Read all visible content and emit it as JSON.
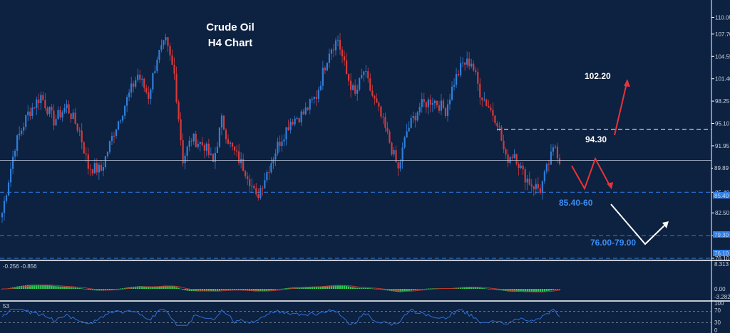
{
  "chart_data": {
    "type": "candlestick",
    "title": "Crude Oil",
    "subtitle": "H4 Chart",
    "colors": {
      "background": "#0d2140",
      "up": "#2f7fd9",
      "down": "#d73a3a",
      "macd": "#34c759",
      "signal": "#c0392b",
      "rsi": "#2f6fd6",
      "white": "#ffffff",
      "level_blue": "#2d7fe8",
      "current_price": "#b8c4d8"
    },
    "price_axis": {
      "ticks": [
        "110.05",
        "107.70",
        "104.55",
        "101.40",
        "98.25",
        "95.10",
        "91.95",
        "88.80",
        "85.40",
        "82.50",
        "79.30",
        "76.10"
      ],
      "ylim": [
        75.8,
        112.5
      ]
    },
    "current_price": "89.89",
    "levels": {
      "resistance_low": "94.30",
      "resistance_high": "102.20",
      "support_zone": "85.40-60",
      "support_deep": "76.00-79.00",
      "support_deep_tag": "79.30",
      "support_floor_tag": "76.10",
      "zone_tag": "85.40"
    },
    "macd": {
      "label": "-0.256 -0.856",
      "ticks": [
        "8.313",
        "0.00",
        "-3.282"
      ]
    },
    "rsi": {
      "label": "53",
      "ticks": [
        "100",
        "70",
        "30",
        "0"
      ]
    },
    "path_points": [
      {
        "i": 0,
        "p": 82.5
      },
      {
        "i": 6,
        "p": 92.0
      },
      {
        "i": 12,
        "p": 96.5
      },
      {
        "i": 18,
        "p": 99.0
      },
      {
        "i": 24,
        "p": 95.5
      },
      {
        "i": 30,
        "p": 97.5
      },
      {
        "i": 36,
        "p": 94.0
      },
      {
        "i": 40,
        "p": 89.0
      },
      {
        "i": 46,
        "p": 88.5
      },
      {
        "i": 52,
        "p": 94.0
      },
      {
        "i": 58,
        "p": 98.5
      },
      {
        "i": 63,
        "p": 102.0
      },
      {
        "i": 68,
        "p": 99.0
      },
      {
        "i": 72,
        "p": 104.5
      },
      {
        "i": 76,
        "p": 106.5
      },
      {
        "i": 80,
        "p": 102.0
      },
      {
        "i": 84,
        "p": 90.0
      },
      {
        "i": 88,
        "p": 93.0
      },
      {
        "i": 94,
        "p": 92.0
      },
      {
        "i": 98,
        "p": 89.5
      },
      {
        "i": 102,
        "p": 95.5
      },
      {
        "i": 106,
        "p": 92.0
      },
      {
        "i": 110,
        "p": 90.0
      },
      {
        "i": 114,
        "p": 88.0
      },
      {
        "i": 118,
        "p": 84.5
      },
      {
        "i": 122,
        "p": 87.5
      },
      {
        "i": 128,
        "p": 92.0
      },
      {
        "i": 134,
        "p": 95.5
      },
      {
        "i": 140,
        "p": 96.5
      },
      {
        "i": 146,
        "p": 99.0
      },
      {
        "i": 152,
        "p": 105.5
      },
      {
        "i": 156,
        "p": 107.0
      },
      {
        "i": 160,
        "p": 102.0
      },
      {
        "i": 164,
        "p": 99.0
      },
      {
        "i": 168,
        "p": 102.5
      },
      {
        "i": 172,
        "p": 99.0
      },
      {
        "i": 176,
        "p": 96.0
      },
      {
        "i": 180,
        "p": 92.5
      },
      {
        "i": 184,
        "p": 88.5
      },
      {
        "i": 188,
        "p": 94.0
      },
      {
        "i": 194,
        "p": 97.5
      },
      {
        "i": 200,
        "p": 98.5
      },
      {
        "i": 206,
        "p": 97.0
      },
      {
        "i": 210,
        "p": 101.0
      },
      {
        "i": 214,
        "p": 103.5
      },
      {
        "i": 218,
        "p": 103.8
      },
      {
        "i": 222,
        "p": 99.5
      },
      {
        "i": 226,
        "p": 97.5
      },
      {
        "i": 230,
        "p": 95.5
      },
      {
        "i": 234,
        "p": 90.0
      },
      {
        "i": 238,
        "p": 91.0
      },
      {
        "i": 242,
        "p": 88.0
      },
      {
        "i": 246,
        "p": 86.5
      },
      {
        "i": 250,
        "p": 85.8
      },
      {
        "i": 254,
        "p": 89.5
      },
      {
        "i": 257,
        "p": 92.0
      },
      {
        "i": 259,
        "p": 89.9
      }
    ]
  }
}
